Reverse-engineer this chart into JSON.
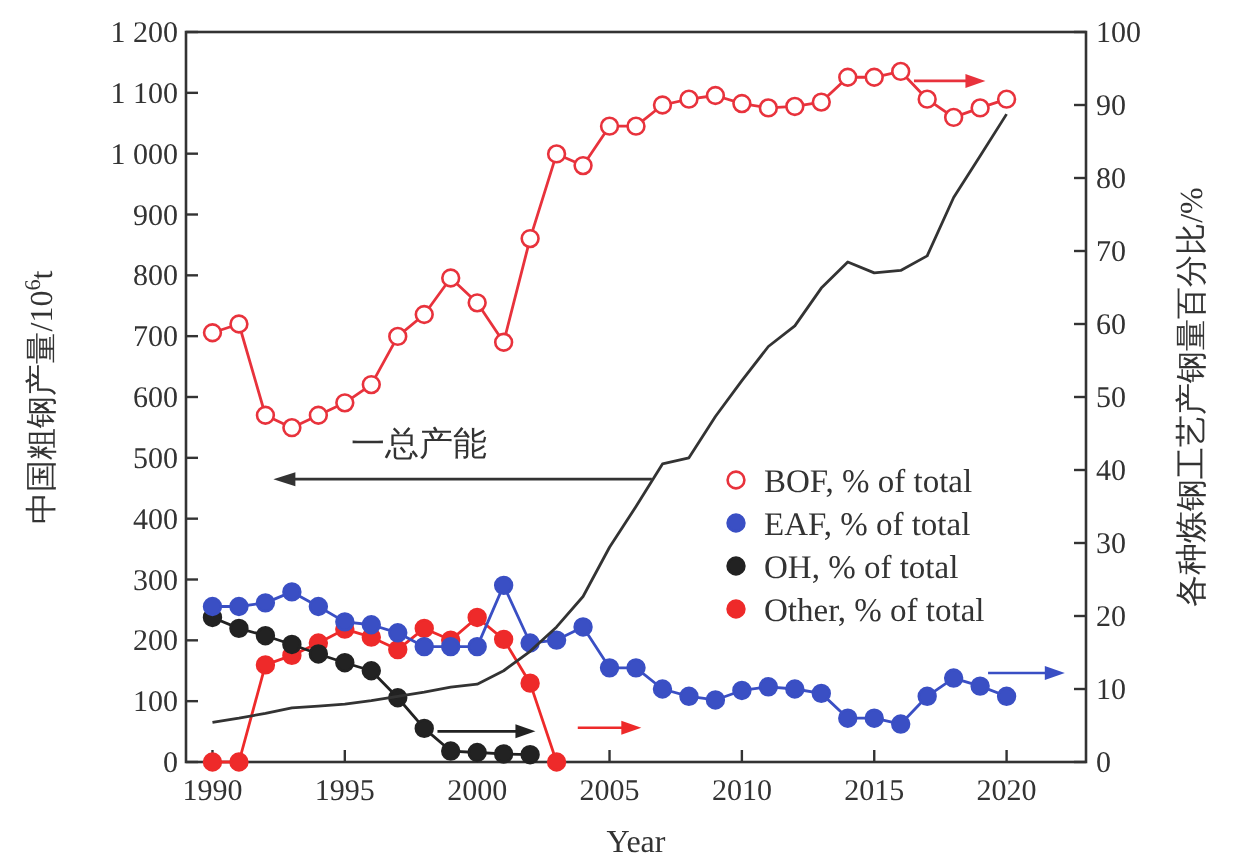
{
  "chart_data": {
    "type": "line",
    "xlabel": "Year",
    "ylabel": "中国粗钢产量/10$^{6}$t",
    "y2label": "各种炼钢工艺产钢量百分比/%",
    "x": [
      1990,
      1991,
      1992,
      1993,
      1994,
      1995,
      1996,
      1997,
      1998,
      1999,
      2000,
      2001,
      2002,
      2003,
      2004,
      2005,
      2006,
      2007,
      2008,
      2009,
      2010,
      2011,
      2012,
      2013,
      2014,
      2015,
      2016,
      2017,
      2018,
      2019,
      2020
    ],
    "xlim": [
      1989,
      2023
    ],
    "xticks": [
      1990,
      1995,
      2000,
      2005,
      2010,
      2015,
      2020
    ],
    "ylim": [
      0,
      1200
    ],
    "yticks": [
      0,
      100,
      200,
      300,
      400,
      500,
      600,
      700,
      800,
      900,
      {
        "value": 1000,
        "label": "1 000"
      },
      {
        "value": 1100,
        "label": "1 100"
      },
      {
        "value": 1200,
        "label": "1 200"
      }
    ],
    "y2lim": [
      0,
      100
    ],
    "y2ticks": [
      0,
      10,
      20,
      30,
      40,
      50,
      60,
      70,
      80,
      90,
      100
    ],
    "legend": "right",
    "marker": "circle",
    "grid": false,
    "annotations": [
      "一总产能"
    ],
    "series": [
      {
        "type": "line",
        "marker": "none",
        "color": "#333333",
        "values": [
          65,
          72,
          80,
          89,
          92,
          95,
          101,
          108,
          115,
          123,
          128,
          150,
          182,
          222,
          272,
          353,
          420,
          490,
          500,
          568,
          627,
          683,
          717,
          779,
          822,
          804,
          808,
          832,
          928,
          996,
          1065
        ]
      },
      {
        "name": "BOF, % of total",
        "axis": "y2",
        "color": "#e8323c",
        "values": [
          58.8,
          60,
          47.5,
          45.8,
          47.5,
          49.2,
          51.7,
          58.3,
          61.3,
          66.3,
          62.9,
          57.5,
          71.7,
          83.3,
          81.7,
          87.1,
          87.1,
          90,
          90.8,
          91.3,
          90.2,
          89.6,
          89.8,
          90.4,
          93.8,
          93.8,
          94.6,
          90.8,
          88.3,
          89.6,
          90.8
        ]
      },
      {
        "name": "EAF, % of total",
        "axis": "y2",
        "color": "#3a4fc4",
        "values": [
          21.3,
          21.3,
          21.8,
          23.3,
          21.3,
          19.2,
          18.8,
          17.7,
          15.8,
          15.8,
          15.8,
          24.2,
          16.3,
          16.7,
          18.5,
          12.9,
          12.9,
          10,
          9,
          8.5,
          9.8,
          10.3,
          10,
          9.4,
          6,
          6,
          5.2,
          9,
          11.5,
          10.4,
          9
        ]
      },
      {
        "name": "OH, % of total",
        "axis": "y2",
        "color": "#222222",
        "x": [
          1990,
          1991,
          1992,
          1993,
          1994,
          1995,
          1996,
          1997,
          1998,
          1999,
          2000,
          2001,
          2002
        ],
        "values": [
          19.8,
          18.3,
          17.3,
          16.1,
          14.8,
          13.6,
          12.5,
          8.8,
          4.6,
          1.5,
          1.3,
          1.1,
          1
        ]
      },
      {
        "name": "Other, % of total",
        "axis": "y2",
        "color": "#ee2a2a",
        "x": [
          1990,
          1991,
          1992,
          1993,
          1994,
          1995,
          1996,
          1997,
          1998,
          1999,
          2000,
          2001,
          2002,
          2003
        ],
        "values": [
          0,
          0,
          13.3,
          14.6,
          16.3,
          18.2,
          17.1,
          15.4,
          18.3,
          16.7,
          19.8,
          16.8,
          10.8,
          0
        ]
      }
    ]
  }
}
